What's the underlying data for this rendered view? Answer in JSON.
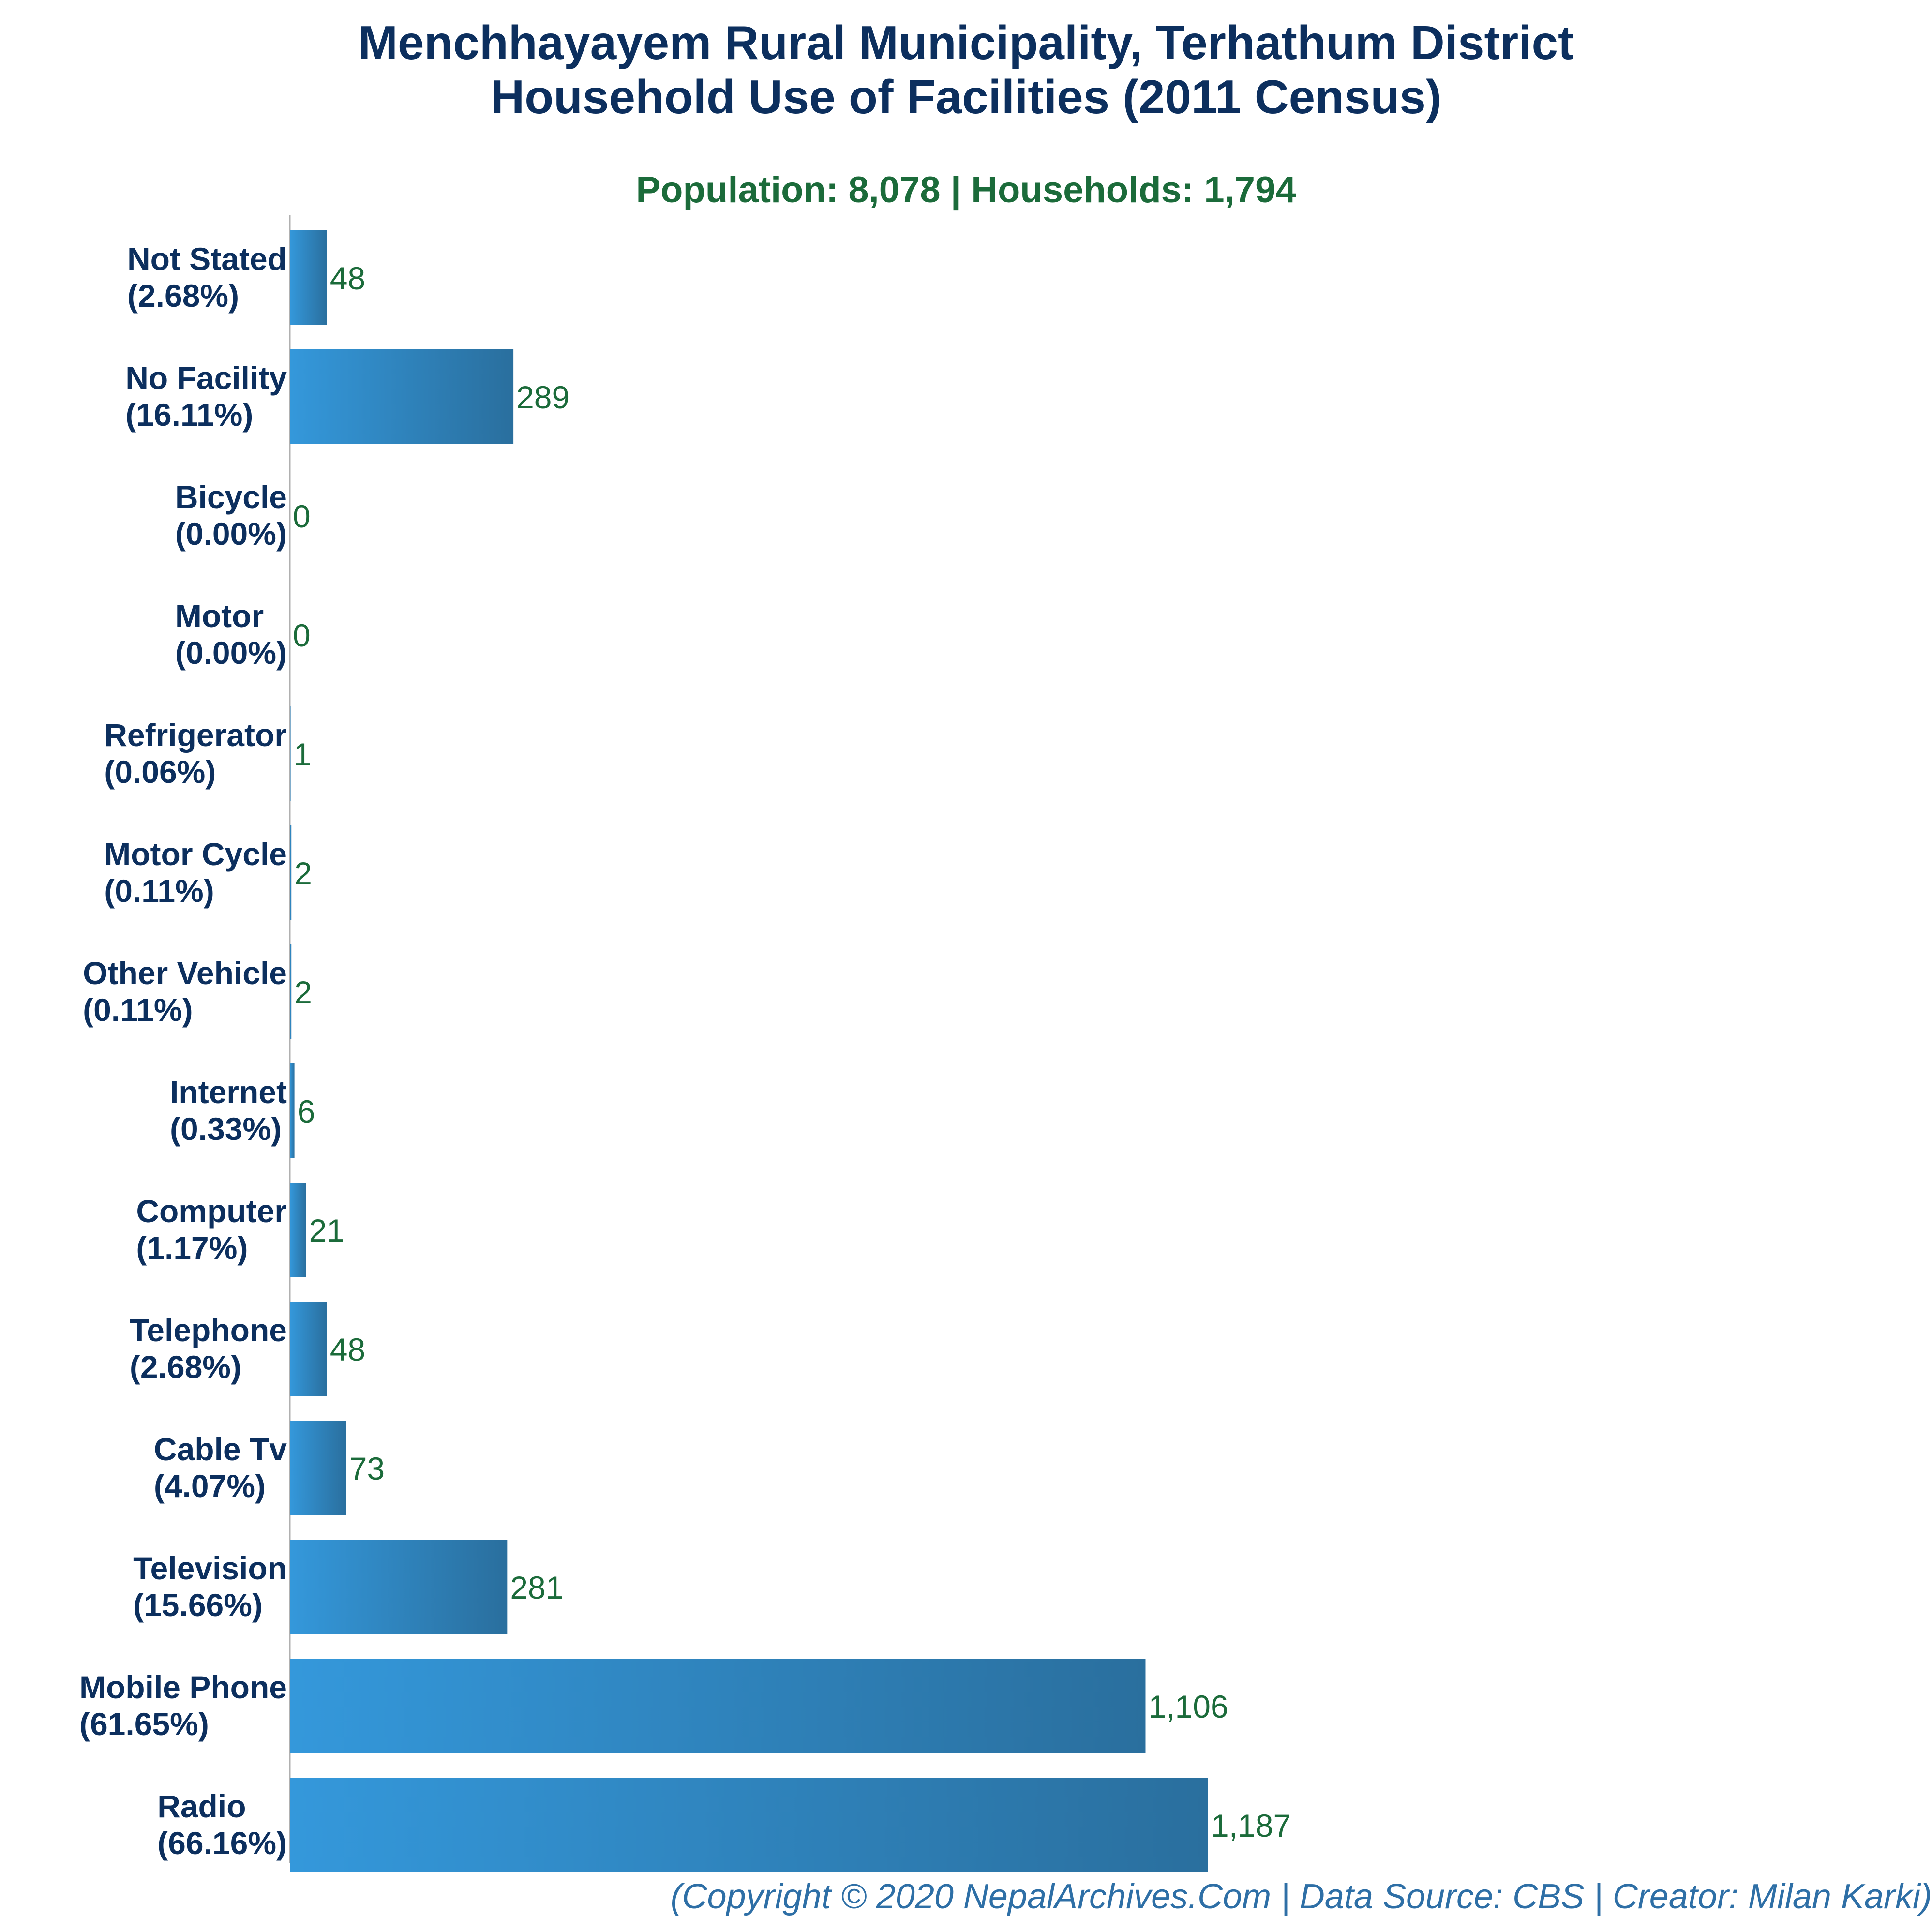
{
  "title": {
    "line1": "Menchhayayem Rural Municipality, Terhathum District",
    "line2": "Household Use of Facilities (2011 Census)"
  },
  "subtitle": "Population: 8,078 | Households: 1,794",
  "footer": "(Copyright © 2020 NepalArchives.Com | Data Source: CBS | Creator: Milan Karki)",
  "colors": {
    "title": "#0c2f5e",
    "subtitle": "#1b6b3a",
    "bar_light": "#3498db",
    "bar_dark": "#2a6f9e",
    "footer": "#2e6fa6"
  },
  "chart_data": {
    "type": "bar",
    "orientation": "horizontal",
    "categories": [
      "Not Stated",
      "No Facility",
      "Bicycle",
      "Motor",
      "Refrigerator",
      "Motor Cycle",
      "Other Vehicle",
      "Internet",
      "Computer",
      "Telephone",
      "Cable Tv",
      "Television",
      "Mobile Phone",
      "Radio"
    ],
    "percent_labels": [
      "(2.68%)",
      "(16.11%)",
      "(0.00%)",
      "(0.00%)",
      "(0.06%)",
      "(0.11%)",
      "(0.11%)",
      "(0.33%)",
      "(1.17%)",
      "(2.68%)",
      "(4.07%)",
      "(15.66%)",
      "(61.65%)",
      "(66.16%)"
    ],
    "values": [
      48,
      289,
      0,
      0,
      1,
      2,
      2,
      6,
      21,
      48,
      73,
      281,
      1106,
      1187
    ],
    "value_labels": [
      "48",
      "289",
      "0",
      "0",
      "1",
      "2",
      "2",
      "6",
      "21",
      "48",
      "73",
      "281",
      "1,106",
      "1,187"
    ],
    "xlim": [
      0,
      1187
    ],
    "grid": false,
    "legend": "none"
  }
}
